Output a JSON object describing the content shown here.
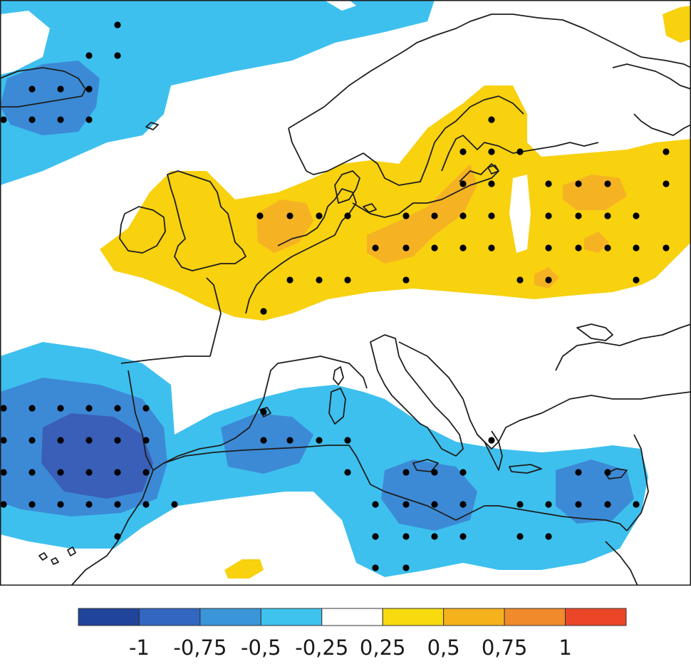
{
  "map": {
    "palette": {
      "strong_negative": "#3a5fb8",
      "medium_negative": "#3c8ad6",
      "light_negative": "#3ec0ee",
      "light_positive": "#f8d10f",
      "medium_positive": "#f5b324",
      "coastline": "#1e1e1e",
      "stipple": "#000000",
      "ocean": "#ffffff"
    }
  },
  "colorbar": {
    "tick_labels": [
      "-1",
      "-0,75",
      "-0,5",
      "-0,25",
      "0,25",
      "0,5",
      "0,75",
      "1"
    ],
    "bins": [
      {
        "color": "#20449a"
      },
      {
        "color": "#3266c0"
      },
      {
        "color": "#3a96d8"
      },
      {
        "color": "#3ec3ef"
      },
      {
        "color": "#ffffff"
      },
      {
        "color": "#f8db0f"
      },
      {
        "color": "#f5b21d"
      },
      {
        "color": "#f08a2b"
      },
      {
        "color": "#ec4628"
      }
    ]
  }
}
